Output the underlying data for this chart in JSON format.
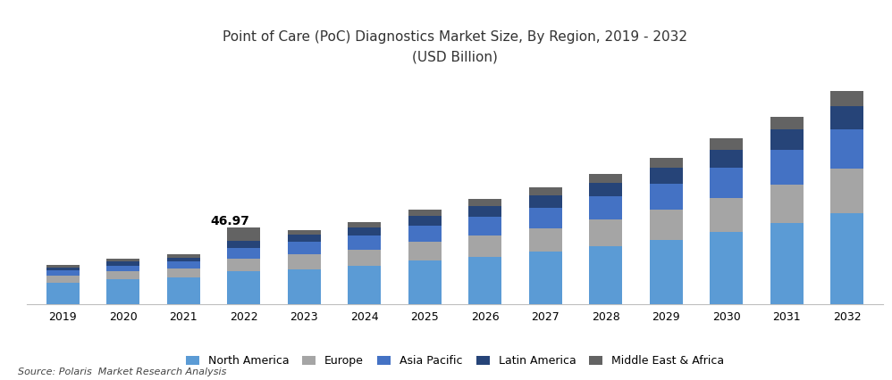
{
  "title_line1": "Point of Care (PoC) Diagnostics Market Size, By Region, 2019 - 2032",
  "title_line2": "(USD Billion)",
  "years": [
    2019,
    2020,
    2021,
    2022,
    2023,
    2024,
    2025,
    2026,
    2027,
    2028,
    2029,
    2030,
    2031,
    2032
  ],
  "regions": [
    "North America",
    "Europe",
    "Asia Pacific",
    "Latin America",
    "Middle East & Africa"
  ],
  "colors": [
    "#5B9BD5",
    "#A5A5A5",
    "#4472C4",
    "#264478",
    "#636363"
  ],
  "annotation_year": 2022,
  "annotation_text": "46.97",
  "source_text": "Source: Polaris  Market Research Analysis",
  "data": {
    "North America": [
      13.0,
      15.0,
      16.5,
      20.0,
      21.5,
      23.5,
      26.5,
      29.0,
      32.0,
      35.5,
      39.5,
      44.0,
      49.5,
      55.5
    ],
    "Europe": [
      4.5,
      5.0,
      5.5,
      8.0,
      9.0,
      10.0,
      11.5,
      13.0,
      14.5,
      16.5,
      18.5,
      21.0,
      24.0,
      27.5
    ],
    "Asia Pacific": [
      3.0,
      3.5,
      4.0,
      6.5,
      7.5,
      8.5,
      10.0,
      11.5,
      12.5,
      14.0,
      16.0,
      18.5,
      21.0,
      24.0
    ],
    "Latin America": [
      2.0,
      2.5,
      2.5,
      4.5,
      4.5,
      5.0,
      6.0,
      6.5,
      7.5,
      8.5,
      9.5,
      11.0,
      12.5,
      14.5
    ],
    "Middle East & Africa": [
      1.5,
      2.0,
      2.2,
      7.97,
      3.0,
      3.5,
      4.0,
      4.5,
      5.0,
      5.5,
      6.0,
      7.0,
      8.0,
      9.5
    ]
  },
  "ylim": [
    0,
    140
  ],
  "background_color": "#ffffff",
  "bar_width": 0.55
}
